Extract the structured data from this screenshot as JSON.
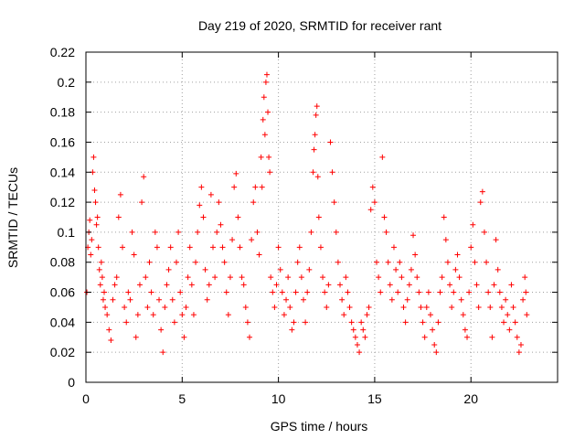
{
  "chart_data": {
    "type": "scatter",
    "title": "Day 219 of 2020, SRMTID for receiver rant",
    "xlabel": "GPS time / hours",
    "ylabel": "SRMTID / TECUs",
    "xlim": [
      0,
      24.5
    ],
    "ylim": [
      0,
      0.22
    ],
    "xticks": [
      0,
      5,
      10,
      15,
      20
    ],
    "yticks": [
      0,
      0.02,
      0.04,
      0.06,
      0.08,
      0.1,
      0.12,
      0.14,
      0.16,
      0.18,
      0.2,
      0.22
    ],
    "xtick_labels": [
      "0",
      "5",
      "10",
      "15",
      "20"
    ],
    "ytick_labels": [
      "0",
      "0.02",
      "0.04",
      "0.06",
      "0.08",
      "0.1",
      "0.12",
      "0.14",
      "0.16",
      "0.18",
      "0.2",
      "0.22"
    ],
    "grid": true,
    "marker": "plus",
    "color": "#ff0000",
    "series": [
      {
        "points": [
          [
            0.05,
            0.06
          ],
          [
            0.1,
            0.09
          ],
          [
            0.15,
            0.1
          ],
          [
            0.2,
            0.108
          ],
          [
            0.25,
            0.085
          ],
          [
            0.3,
            0.095
          ],
          [
            0.35,
            0.14
          ],
          [
            0.4,
            0.15
          ],
          [
            0.45,
            0.128
          ],
          [
            0.5,
            0.12
          ],
          [
            0.55,
            0.105
          ],
          [
            0.6,
            0.11
          ],
          [
            0.65,
            0.09
          ],
          [
            0.7,
            0.075
          ],
          [
            0.75,
            0.065
          ],
          [
            0.8,
            0.08
          ],
          [
            0.85,
            0.07
          ],
          [
            0.9,
            0.055
          ],
          [
            0.95,
            0.06
          ],
          [
            1.0,
            0.05
          ],
          [
            1.1,
            0.045
          ],
          [
            1.2,
            0.035
          ],
          [
            1.3,
            0.028
          ],
          [
            1.4,
            0.055
          ],
          [
            1.5,
            0.065
          ],
          [
            1.6,
            0.07
          ],
          [
            1.7,
            0.11
          ],
          [
            1.8,
            0.125
          ],
          [
            1.9,
            0.09
          ],
          [
            2.0,
            0.05
          ],
          [
            2.1,
            0.04
          ],
          [
            2.2,
            0.06
          ],
          [
            2.3,
            0.055
          ],
          [
            2.4,
            0.1
          ],
          [
            2.5,
            0.085
          ],
          [
            2.6,
            0.03
          ],
          [
            2.7,
            0.045
          ],
          [
            2.8,
            0.065
          ],
          [
            2.9,
            0.12
          ],
          [
            3.0,
            0.137
          ],
          [
            3.1,
            0.07
          ],
          [
            3.2,
            0.05
          ],
          [
            3.3,
            0.08
          ],
          [
            3.4,
            0.06
          ],
          [
            3.5,
            0.045
          ],
          [
            3.6,
            0.1
          ],
          [
            3.7,
            0.09
          ],
          [
            3.8,
            0.055
          ],
          [
            3.9,
            0.035
          ],
          [
            4.0,
            0.02
          ],
          [
            4.1,
            0.05
          ],
          [
            4.2,
            0.065
          ],
          [
            4.3,
            0.075
          ],
          [
            4.4,
            0.09
          ],
          [
            4.5,
            0.055
          ],
          [
            4.6,
            0.04
          ],
          [
            4.7,
            0.08
          ],
          [
            4.8,
            0.1
          ],
          [
            4.9,
            0.06
          ],
          [
            5.0,
            0.045
          ],
          [
            5.1,
            0.03
          ],
          [
            5.2,
            0.05
          ],
          [
            5.3,
            0.07
          ],
          [
            5.4,
            0.09
          ],
          [
            5.5,
            0.065
          ],
          [
            5.6,
            0.045
          ],
          [
            5.7,
            0.08
          ],
          [
            5.8,
            0.1
          ],
          [
            5.9,
            0.118
          ],
          [
            6.0,
            0.13
          ],
          [
            6.1,
            0.11
          ],
          [
            6.2,
            0.075
          ],
          [
            6.3,
            0.055
          ],
          [
            6.4,
            0.065
          ],
          [
            6.5,
            0.125
          ],
          [
            6.6,
            0.09
          ],
          [
            6.7,
            0.07
          ],
          [
            6.8,
            0.1
          ],
          [
            6.9,
            0.12
          ],
          [
            7.0,
            0.105
          ],
          [
            7.1,
            0.09
          ],
          [
            7.2,
            0.08
          ],
          [
            7.3,
            0.06
          ],
          [
            7.4,
            0.045
          ],
          [
            7.5,
            0.07
          ],
          [
            7.6,
            0.095
          ],
          [
            7.7,
            0.13
          ],
          [
            7.8,
            0.139
          ],
          [
            7.9,
            0.11
          ],
          [
            8.0,
            0.09
          ],
          [
            8.1,
            0.07
          ],
          [
            8.2,
            0.065
          ],
          [
            8.3,
            0.05
          ],
          [
            8.4,
            0.04
          ],
          [
            8.5,
            0.03
          ],
          [
            8.6,
            0.095
          ],
          [
            8.7,
            0.12
          ],
          [
            8.8,
            0.13
          ],
          [
            8.9,
            0.1
          ],
          [
            9.0,
            0.085
          ],
          [
            9.1,
            0.15
          ],
          [
            9.15,
            0.13
          ],
          [
            9.2,
            0.175
          ],
          [
            9.25,
            0.19
          ],
          [
            9.3,
            0.165
          ],
          [
            9.35,
            0.2
          ],
          [
            9.4,
            0.205
          ],
          [
            9.45,
            0.18
          ],
          [
            9.5,
            0.15
          ],
          [
            9.55,
            0.14
          ],
          [
            9.6,
            0.07
          ],
          [
            9.7,
            0.06
          ],
          [
            9.8,
            0.05
          ],
          [
            9.9,
            0.065
          ],
          [
            10.0,
            0.09
          ],
          [
            10.1,
            0.075
          ],
          [
            10.2,
            0.06
          ],
          [
            10.3,
            0.045
          ],
          [
            10.4,
            0.055
          ],
          [
            10.5,
            0.07
          ],
          [
            10.6,
            0.05
          ],
          [
            10.7,
            0.035
          ],
          [
            10.8,
            0.04
          ],
          [
            10.9,
            0.06
          ],
          [
            11.0,
            0.08
          ],
          [
            11.1,
            0.09
          ],
          [
            11.2,
            0.07
          ],
          [
            11.3,
            0.055
          ],
          [
            11.4,
            0.04
          ],
          [
            11.5,
            0.06
          ],
          [
            11.6,
            0.075
          ],
          [
            11.7,
            0.1
          ],
          [
            11.8,
            0.14
          ],
          [
            11.85,
            0.155
          ],
          [
            11.9,
            0.165
          ],
          [
            11.95,
            0.178
          ],
          [
            12.0,
            0.184
          ],
          [
            12.05,
            0.137
          ],
          [
            12.1,
            0.11
          ],
          [
            12.2,
            0.09
          ],
          [
            12.3,
            0.07
          ],
          [
            12.4,
            0.06
          ],
          [
            12.5,
            0.05
          ],
          [
            12.6,
            0.065
          ],
          [
            12.7,
            0.16
          ],
          [
            12.8,
            0.14
          ],
          [
            12.9,
            0.12
          ],
          [
            13.0,
            0.1
          ],
          [
            13.1,
            0.08
          ],
          [
            13.2,
            0.065
          ],
          [
            13.3,
            0.055
          ],
          [
            13.4,
            0.045
          ],
          [
            13.5,
            0.07
          ],
          [
            13.6,
            0.06
          ],
          [
            13.7,
            0.05
          ],
          [
            13.8,
            0.04
          ],
          [
            13.9,
            0.035
          ],
          [
            14.0,
            0.03
          ],
          [
            14.1,
            0.025
          ],
          [
            14.2,
            0.02
          ],
          [
            14.3,
            0.04
          ],
          [
            14.4,
            0.035
          ],
          [
            14.5,
            0.03
          ],
          [
            14.6,
            0.045
          ],
          [
            14.7,
            0.05
          ],
          [
            14.8,
            0.115
          ],
          [
            14.9,
            0.13
          ],
          [
            15.0,
            0.12
          ],
          [
            15.1,
            0.08
          ],
          [
            15.2,
            0.07
          ],
          [
            15.3,
            0.06
          ],
          [
            15.4,
            0.15
          ],
          [
            15.5,
            0.11
          ],
          [
            15.6,
            0.1
          ],
          [
            15.7,
            0.08
          ],
          [
            15.8,
            0.065
          ],
          [
            15.9,
            0.055
          ],
          [
            16.0,
            0.09
          ],
          [
            16.1,
            0.075
          ],
          [
            16.2,
            0.06
          ],
          [
            16.3,
            0.08
          ],
          [
            16.4,
            0.07
          ],
          [
            16.5,
            0.05
          ],
          [
            16.6,
            0.04
          ],
          [
            16.7,
            0.055
          ],
          [
            16.8,
            0.065
          ],
          [
            16.9,
            0.075
          ],
          [
            17.0,
            0.098
          ],
          [
            17.1,
            0.085
          ],
          [
            17.2,
            0.07
          ],
          [
            17.3,
            0.06
          ],
          [
            17.4,
            0.05
          ],
          [
            17.5,
            0.04
          ],
          [
            17.6,
            0.03
          ],
          [
            17.7,
            0.05
          ],
          [
            17.8,
            0.06
          ],
          [
            17.9,
            0.045
          ],
          [
            18.0,
            0.035
          ],
          [
            18.1,
            0.025
          ],
          [
            18.2,
            0.02
          ],
          [
            18.3,
            0.04
          ],
          [
            18.4,
            0.06
          ],
          [
            18.5,
            0.07
          ],
          [
            18.6,
            0.11
          ],
          [
            18.7,
            0.095
          ],
          [
            18.8,
            0.08
          ],
          [
            18.9,
            0.065
          ],
          [
            19.0,
            0.05
          ],
          [
            19.1,
            0.06
          ],
          [
            19.2,
            0.075
          ],
          [
            19.3,
            0.085
          ],
          [
            19.4,
            0.07
          ],
          [
            19.5,
            0.055
          ],
          [
            19.6,
            0.045
          ],
          [
            19.7,
            0.035
          ],
          [
            19.8,
            0.03
          ],
          [
            19.9,
            0.06
          ],
          [
            20.0,
            0.09
          ],
          [
            20.1,
            0.105
          ],
          [
            20.2,
            0.08
          ],
          [
            20.3,
            0.065
          ],
          [
            20.4,
            0.05
          ],
          [
            20.5,
            0.12
          ],
          [
            20.6,
            0.127
          ],
          [
            20.7,
            0.1
          ],
          [
            20.8,
            0.08
          ],
          [
            20.9,
            0.06
          ],
          [
            21.0,
            0.05
          ],
          [
            21.1,
            0.03
          ],
          [
            21.2,
            0.065
          ],
          [
            21.3,
            0.095
          ],
          [
            21.4,
            0.075
          ],
          [
            21.5,
            0.06
          ],
          [
            21.6,
            0.05
          ],
          [
            21.7,
            0.04
          ],
          [
            21.8,
            0.055
          ],
          [
            21.9,
            0.045
          ],
          [
            22.0,
            0.035
          ],
          [
            22.1,
            0.065
          ],
          [
            22.2,
            0.05
          ],
          [
            22.3,
            0.04
          ],
          [
            22.4,
            0.03
          ],
          [
            22.5,
            0.02
          ],
          [
            22.6,
            0.025
          ],
          [
            22.7,
            0.055
          ],
          [
            22.8,
            0.07
          ],
          [
            22.85,
            0.06
          ],
          [
            22.9,
            0.045
          ]
        ]
      }
    ]
  }
}
